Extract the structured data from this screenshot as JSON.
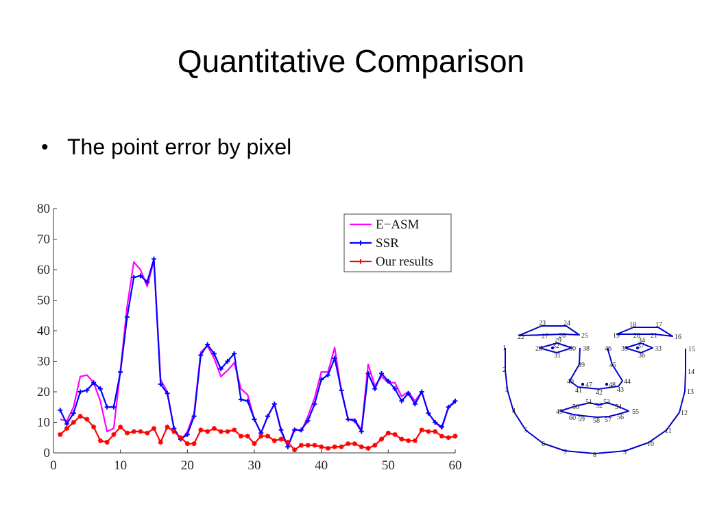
{
  "slide": {
    "title": "Quantitative Comparison",
    "bullet": "The point error by pixel"
  },
  "chart_data": {
    "type": "line",
    "title": "",
    "xlabel": "",
    "ylabel": "",
    "xlim": [
      0,
      60
    ],
    "ylim": [
      0,
      80
    ],
    "xticks": [
      0,
      10,
      20,
      30,
      40,
      50,
      60
    ],
    "yticks": [
      0,
      10,
      20,
      30,
      40,
      50,
      60,
      70,
      80
    ],
    "grid": false,
    "legend_position": "top-right",
    "x": [
      1,
      2,
      3,
      4,
      5,
      6,
      7,
      8,
      9,
      10,
      11,
      12,
      13,
      14,
      15,
      16,
      17,
      18,
      19,
      20,
      21,
      22,
      23,
      24,
      25,
      26,
      27,
      28,
      29,
      30,
      31,
      32,
      33,
      34,
      35,
      36,
      37,
      38,
      39,
      40,
      41,
      42,
      43,
      44,
      45,
      46,
      47,
      48,
      49,
      50,
      51,
      52,
      53,
      54,
      55,
      56,
      57,
      58,
      59,
      60
    ],
    "series": [
      {
        "name": "E−ASM",
        "color": "#ff00ff",
        "marker": "none",
        "values": [
          11,
          10.5,
          15,
          25,
          25.5,
          23,
          17,
          7,
          8,
          27,
          48,
          62.5,
          60,
          54.5,
          63,
          24,
          20,
          8,
          4,
          7,
          13,
          33,
          35,
          31,
          25,
          27,
          29.5,
          21,
          19,
          11,
          6.5,
          12,
          16,
          7,
          2,
          8,
          7,
          12,
          18,
          26.5,
          26.5,
          34.5,
          20,
          11,
          11,
          7.5,
          29,
          22,
          25,
          23,
          23,
          18.5,
          20,
          17,
          20,
          13,
          10,
          8,
          15,
          16.5
        ]
      },
      {
        "name": "SSR",
        "color": "#0000ff",
        "marker": "plus",
        "values": [
          14,
          9.5,
          13,
          20,
          20.5,
          23,
          21,
          15,
          15,
          26.5,
          44.5,
          57.5,
          58,
          56,
          63.5,
          22.5,
          19.5,
          8,
          4.5,
          6,
          12,
          32,
          35.5,
          32.5,
          27.5,
          30,
          32.5,
          17.5,
          17,
          11,
          6.5,
          12,
          16,
          7.5,
          2,
          7.5,
          7.5,
          10.5,
          16,
          24,
          25.5,
          31,
          20.5,
          11,
          10.5,
          7,
          26,
          21,
          26,
          23.5,
          21,
          17,
          19.5,
          16,
          20,
          13,
          10,
          8.5,
          15,
          17
        ]
      },
      {
        "name": "Our results",
        "color": "#ff0000",
        "marker": "star",
        "values": [
          6,
          8,
          10,
          12,
          11,
          8.5,
          4,
          3.5,
          6,
          8.5,
          6.5,
          7,
          7,
          6.5,
          8,
          3.5,
          8.5,
          7,
          5,
          3,
          3,
          7.5,
          7,
          8,
          7,
          7,
          7.5,
          5.5,
          5.5,
          3,
          5.5,
          5.5,
          4,
          4.5,
          3.5,
          1,
          2.5,
          2.5,
          2.5,
          2,
          1.5,
          2,
          2,
          3,
          3,
          2,
          1.5,
          2.5,
          4.5,
          6.5,
          6,
          4.5,
          4,
          4,
          7.5,
          7,
          7,
          5.5,
          5,
          5.5
        ]
      }
    ]
  },
  "face_diagram": {
    "color": "#0000cc",
    "labels": [
      "1",
      "2",
      "3",
      "4",
      "5",
      "6",
      "7",
      "8",
      "9",
      "10",
      "11",
      "12",
      "13",
      "14",
      "15",
      "16",
      "17",
      "18",
      "19",
      "20",
      "21",
      "22",
      "23",
      "24",
      "25",
      "26",
      "27",
      "28",
      "29",
      "30",
      "31",
      "32",
      "33",
      "34",
      "35",
      "36",
      "37",
      "38",
      "39",
      "40",
      "41",
      "42",
      "43",
      "44",
      "45",
      "46",
      "47",
      "48",
      "49",
      "50",
      "51",
      "52",
      "53",
      "54",
      "55",
      "56",
      "57",
      "58",
      "59",
      "60"
    ]
  }
}
